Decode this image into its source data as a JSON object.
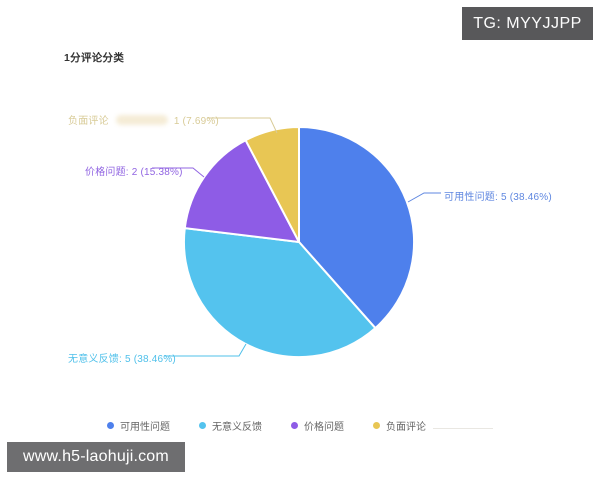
{
  "badge": {
    "text": "TG: MYYJJPP",
    "bg_color": "#58585a"
  },
  "title": "1分评论分类",
  "chart_data": {
    "type": "pie",
    "title": "1分评论分类",
    "total": 13,
    "legend_position": "bottom",
    "start_angle_deg": -90,
    "clockwise": true,
    "slices": [
      {
        "name": "可用性问题",
        "value": 5,
        "pct": "38.46%",
        "color": "#4e80ec",
        "label_color": "#5f87e0",
        "label": "可用性问题: 5 (38.46%)"
      },
      {
        "name": "无意义反馈",
        "value": 5,
        "pct": "38.46%",
        "color": "#54c3ee",
        "label_color": "#4fc0ea",
        "label": "无意义反馈: 5 (38.46%)"
      },
      {
        "name": "价格问题",
        "value": 2,
        "pct": "15.38%",
        "color": "#8e5ce6",
        "label_color": "#9165e2",
        "label": "价格问题: 2 (15.38%)"
      },
      {
        "name": "负面评论",
        "value": 1,
        "pct": "7.69%",
        "color": "#e8c654",
        "label_color": "#d8cb97",
        "label_prefix": "负面评论",
        "label_suffix": "1 (7.69%)"
      }
    ]
  },
  "watermark": {
    "text": "www.h5-laohuji.com",
    "bg_color": "#6e6e70"
  }
}
